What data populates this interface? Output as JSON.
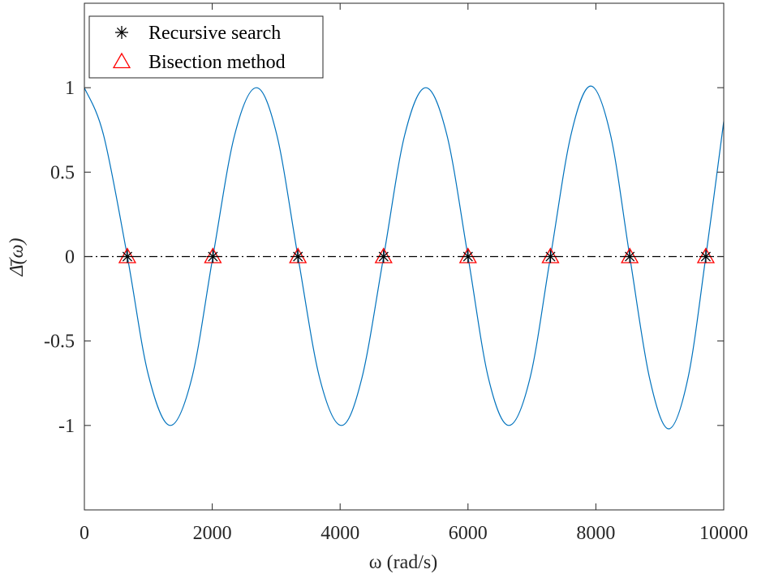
{
  "chart_data": {
    "type": "line",
    "xlabel": "ω (rad/s)",
    "ylabel": "Δ̄(ω)",
    "xlim": [
      0,
      10000
    ],
    "ylim": [
      -1.5,
      1.5
    ],
    "x_ticks": [
      0,
      2000,
      4000,
      6000,
      8000,
      10000
    ],
    "x_tick_labels": [
      "0",
      "2000",
      "4000",
      "6000",
      "8000",
      "10000"
    ],
    "y_ticks": [
      1,
      0.5,
      0,
      -0.5,
      -1
    ],
    "y_tick_labels": [
      "1",
      "0.5",
      "0",
      "-0.5",
      "-1"
    ],
    "grid": false,
    "legend_position": "top-left",
    "reference_line": {
      "y": 0,
      "style": "dash-dot",
      "color": "#000000"
    },
    "curve": {
      "color": "#0072bd",
      "x": [
        0,
        300,
        672,
        1000,
        1340,
        1680,
        2010,
        2350,
        2690,
        3010,
        3340,
        3680,
        4020,
        4340,
        4680,
        5010,
        5340,
        5670,
        6000,
        6320,
        6640,
        6970,
        7290,
        7610,
        7920,
        8230,
        8530,
        8840,
        9140,
        9440,
        9720,
        10000
      ],
      "y": [
        1.0,
        0.72,
        0.0,
        -0.7,
        -1.0,
        -0.72,
        0.0,
        0.72,
        1.0,
        0.72,
        0.0,
        -0.72,
        -1.0,
        -0.72,
        0.0,
        0.72,
        1.0,
        0.72,
        0.0,
        -0.72,
        -1.0,
        -0.72,
        0.0,
        0.72,
        1.01,
        0.72,
        0.0,
        -0.72,
        -1.02,
        -0.72,
        0.0,
        0.8
      ]
    },
    "series": [
      {
        "name": "Recursive search",
        "marker": "asterisk",
        "color": "#000000",
        "x": [
          672,
          2010,
          3340,
          4680,
          6000,
          7290,
          8530,
          9720
        ],
        "y": [
          0,
          0,
          0,
          0,
          0,
          0,
          0,
          0
        ]
      },
      {
        "name": "Bisection method",
        "marker": "triangle",
        "color": "#ff0000",
        "x": [
          672,
          2010,
          3340,
          4680,
          6000,
          7290,
          8530,
          9720
        ],
        "y": [
          0,
          0,
          0,
          0,
          0,
          0,
          0,
          0
        ]
      }
    ]
  }
}
